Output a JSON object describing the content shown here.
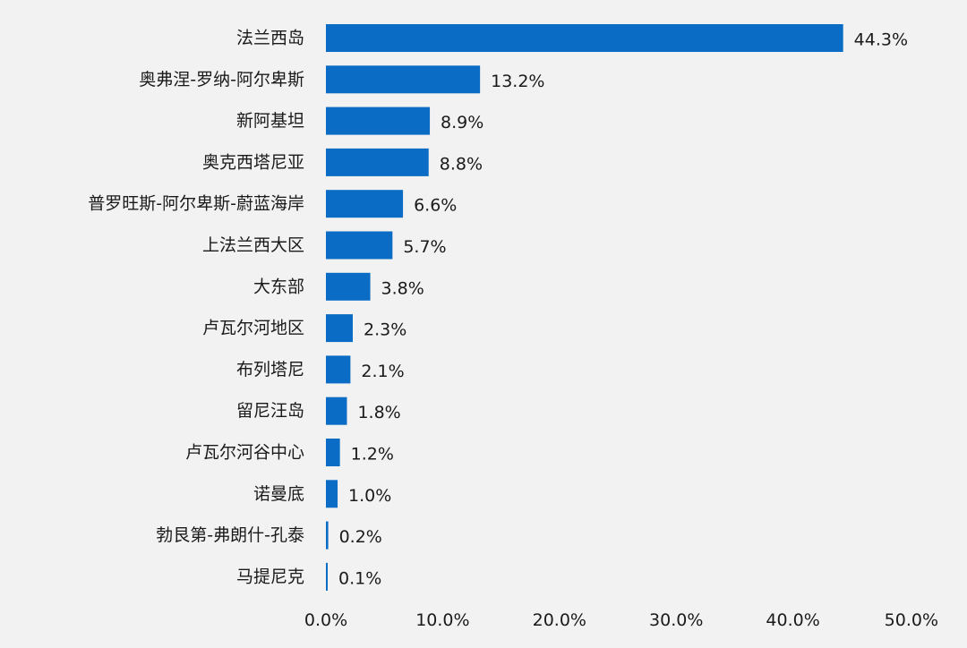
{
  "chart_data": {
    "type": "bar",
    "orientation": "horizontal",
    "categories": [
      "法兰西岛",
      "奥弗涅-罗纳-阿尔卑斯",
      "新阿基坦",
      "奥克西塔尼亚",
      "普罗旺斯-阿尔卑斯-蔚蓝海岸",
      "上法兰西大区",
      "大东部",
      "卢瓦尔河地区",
      "布列塔尼",
      "留尼汪岛",
      "卢瓦尔河谷中心",
      "诺曼底",
      "勃艮第-弗朗什-孔泰",
      "马提尼克"
    ],
    "values": [
      44.3,
      13.2,
      8.9,
      8.8,
      6.6,
      5.7,
      3.8,
      2.3,
      2.1,
      1.8,
      1.2,
      1.0,
      0.2,
      0.1
    ],
    "value_labels": [
      "44.3%",
      "13.2%",
      "8.9%",
      "8.8%",
      "6.6%",
      "5.7%",
      "3.8%",
      "2.3%",
      "2.1%",
      "1.8%",
      "1.2%",
      "1.0%",
      "0.2%",
      "0.1%"
    ],
    "x_ticks": [
      0,
      10,
      20,
      30,
      40,
      50
    ],
    "x_tick_labels": [
      "0.0%",
      "10.0%",
      "20.0%",
      "30.0%",
      "40.0%",
      "50.0%"
    ],
    "xlim": [
      0,
      50
    ],
    "title": "",
    "xlabel": "",
    "ylabel": "",
    "grid": false,
    "legend": "none",
    "bar_color": "#0a6cc4",
    "background": "#f2f2f2"
  }
}
